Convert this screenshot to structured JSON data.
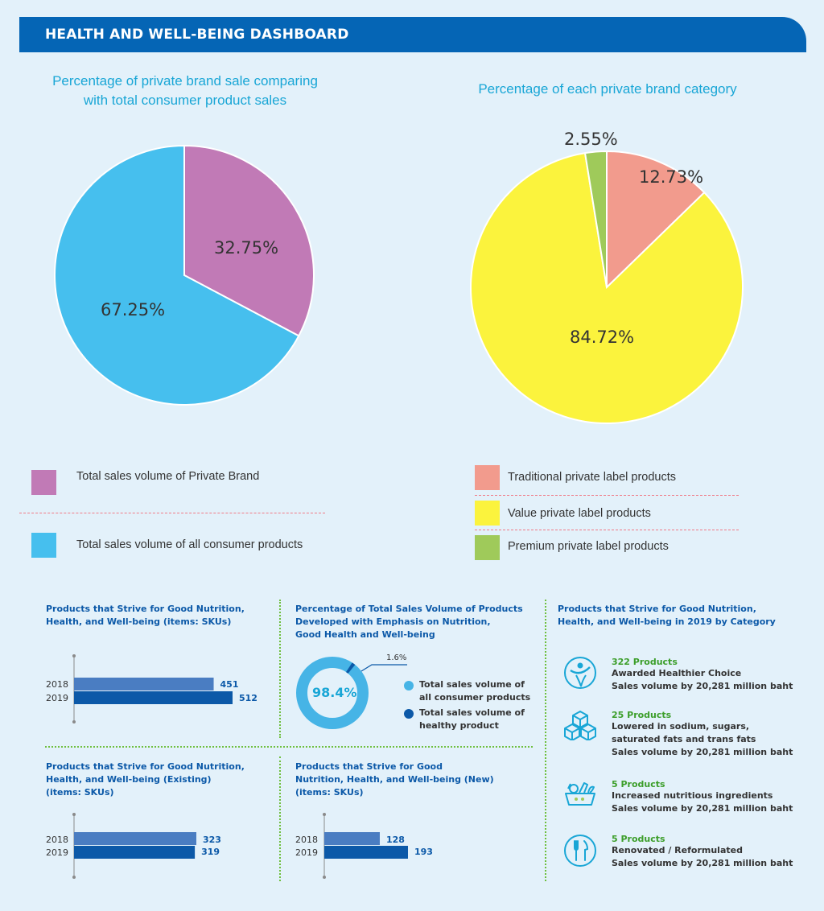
{
  "header": {
    "title": "HEALTH AND WELL-BEING DASHBOARD"
  },
  "colors": {
    "banner": "#0565b5",
    "private_brand": "#c17ab6",
    "all_consumer": "#46bfee",
    "traditional": "#f29b8d",
    "value": "#fbf33d",
    "premium": "#9fca5a",
    "bar_2018": "#4a7dc2",
    "bar_2019": "#0c59a8"
  },
  "chart_data": [
    {
      "type": "pie",
      "title": "Percentage of private brand sale comparing with total consumer product sales",
      "slices": [
        {
          "name": "Total sales volume of Private Brand",
          "value": 32.75,
          "label": "32.75%"
        },
        {
          "name": "Total sales volume of all consumer products",
          "value": 67.25,
          "label": "67.25%"
        }
      ],
      "legend": "bottom"
    },
    {
      "type": "pie",
      "title": "Percentage of each private brand category",
      "slices": [
        {
          "name": "Traditional private label products",
          "value": 12.73,
          "label": "12.73%"
        },
        {
          "name": "Value private label products",
          "value": 84.72,
          "label": "84.72%"
        },
        {
          "name": "Premium private label products",
          "value": 2.55,
          "label": "2.55%"
        }
      ],
      "legend": "bottom"
    },
    {
      "type": "bar",
      "title": "Products that Strive for Good Nutrition, Health, and Well-being (items: SKUs)",
      "categories": [
        "2018",
        "2019"
      ],
      "values": [
        451,
        512
      ]
    },
    {
      "type": "pie",
      "title": "Percentage of Total Sales Volume of Products Developed with Emphasis on Nutrition, Good Health and Well-being",
      "slices": [
        {
          "name": "Total sales volume of all consumer products",
          "value": 98.4,
          "label": "98.4%"
        },
        {
          "name": "Total sales volume of healthy product",
          "value": 1.6,
          "label": "1.6%"
        }
      ]
    },
    {
      "type": "bar",
      "title": "Products that Strive for Good Nutrition, Health, and Well-being (Existing) (items: SKUs)",
      "categories": [
        "2018",
        "2019"
      ],
      "values": [
        323,
        319
      ]
    },
    {
      "type": "bar",
      "title": "Products that Strive for Good Nutrition, Health, and Well-being (New) (items: SKUs)",
      "categories": [
        "2018",
        "2019"
      ],
      "values": [
        128,
        193
      ]
    }
  ],
  "categories_section": {
    "title_line1": "Products that Strive for Good Nutrition,",
    "title_line2": "Health, and Well-being in 2019 by Category",
    "items": [
      {
        "icon": "healthier-choice-icon",
        "count": "322 Products",
        "desc1": "Awarded Healthier Choice",
        "desc2": "Sales volume by 20,281 million baht",
        "desc3": ""
      },
      {
        "icon": "cubes-icon",
        "count": "25 Products",
        "desc1": "Lowered in sodium, sugars,",
        "desc2": "saturated fats and trans fats",
        "desc3": "Sales volume by 20,281 million baht"
      },
      {
        "icon": "food-basket-icon",
        "count": "5 Products",
        "desc1": "Increased nutritious ingredients",
        "desc2": "Sales volume by 20,281 million baht",
        "desc3": ""
      },
      {
        "icon": "cutlery-icon",
        "count": "5 Products",
        "desc1": "Renovated / Reformulated",
        "desc2": "Sales volume by 20,281 million baht",
        "desc3": ""
      }
    ]
  },
  "text": {
    "pie1_title_l1": "Percentage of private brand sale comparing",
    "pie1_title_l2": "with total consumer product sales",
    "pie2_title": "Percentage of each private brand category",
    "bar1_title_l1": "Products that Strive for Good Nutrition,",
    "bar1_title_l2": "Health, and Well-being (items: SKUs)",
    "donut_title_l1": "Percentage of Total Sales Volume of Products",
    "donut_title_l2": "Developed with Emphasis on Nutrition,",
    "donut_title_l3": "Good Health and Well-being",
    "bar2_title_l1": "Products that Strive for Good Nutrition,",
    "bar2_title_l2": "Health, and Well-being (Existing)",
    "bar2_title_l3": "(items: SKUs)",
    "bar3_title_l1": "Products that Strive for Good",
    "bar3_title_l2": "Nutrition, Health, and Well-being (New)",
    "bar3_title_l3": "(items: SKUs)",
    "donut_leg1_l1": "Total sales volume of",
    "donut_leg1_l2": "all consumer products",
    "donut_leg2_l1": "Total sales volume of",
    "donut_leg2_l2": "healthy product"
  }
}
